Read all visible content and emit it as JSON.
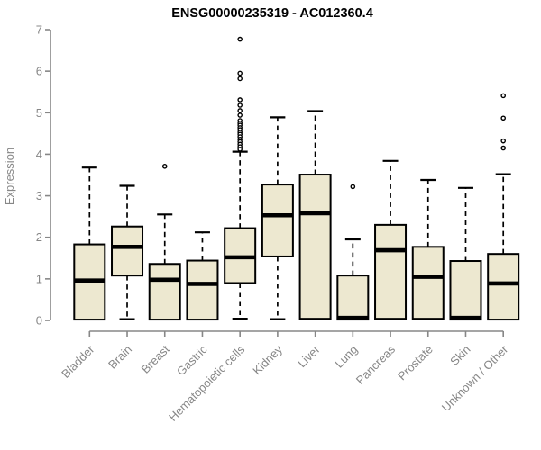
{
  "chart_data": {
    "type": "boxplot",
    "title": "ENSG00000235319 - AC012360.4",
    "xlabel": "",
    "ylabel": "Expression",
    "ylim": [
      0,
      7
    ],
    "yticks": [
      "0",
      "1",
      "2",
      "3",
      "4",
      "5",
      "6",
      "7"
    ],
    "grid": false,
    "legend": "none",
    "categories": [
      "Bladder",
      "Brain",
      "Breast",
      "Gastric",
      "Hematopoietic cells",
      "Kidney",
      "Liver",
      "Lung",
      "Pancreas",
      "Prostate",
      "Skin",
      "Unknown / Other"
    ],
    "series": [
      {
        "name": "Bladder",
        "whisker_low": null,
        "q1": 0.02,
        "median": 0.96,
        "q3": 1.83,
        "whisker_high": 3.68,
        "outliers": []
      },
      {
        "name": "Brain",
        "whisker_low": 0.03,
        "q1": 1.08,
        "median": 1.77,
        "q3": 2.26,
        "whisker_high": 3.24,
        "outliers": []
      },
      {
        "name": "Breast",
        "whisker_low": null,
        "q1": 0.02,
        "median": 0.98,
        "q3": 1.36,
        "whisker_high": 2.55,
        "outliers": [
          3.71
        ]
      },
      {
        "name": "Gastric",
        "whisker_low": null,
        "q1": 0.02,
        "median": 0.88,
        "q3": 1.44,
        "whisker_high": 2.12,
        "outliers": []
      },
      {
        "name": "Hematopoietic cells",
        "whisker_low": 0.04,
        "q1": 0.9,
        "median": 1.52,
        "q3": 2.22,
        "whisker_high": 4.06,
        "outliers": [
          6.77,
          5.95,
          5.82,
          5.31,
          5.18,
          5.05,
          4.94,
          4.81,
          4.75,
          4.7,
          4.64,
          4.59,
          4.53,
          4.48,
          4.42,
          4.36,
          4.3,
          4.24,
          4.18,
          4.12
        ]
      },
      {
        "name": "Kidney",
        "whisker_low": 0.03,
        "q1": 1.54,
        "median": 2.53,
        "q3": 3.27,
        "whisker_high": 4.89,
        "outliers": []
      },
      {
        "name": "Liver",
        "whisker_low": null,
        "q1": 0.04,
        "median": 2.58,
        "q3": 3.51,
        "whisker_high": 5.04,
        "outliers": []
      },
      {
        "name": "Lung",
        "whisker_low": null,
        "q1": 0.02,
        "median": 0.06,
        "q3": 1.08,
        "whisker_high": 1.95,
        "outliers": [
          3.22
        ]
      },
      {
        "name": "Pancreas",
        "whisker_low": null,
        "q1": 0.04,
        "median": 1.69,
        "q3": 2.3,
        "whisker_high": 3.84,
        "outliers": []
      },
      {
        "name": "Prostate",
        "whisker_low": null,
        "q1": 0.04,
        "median": 1.05,
        "q3": 1.77,
        "whisker_high": 3.38,
        "outliers": []
      },
      {
        "name": "Skin",
        "whisker_low": null,
        "q1": 0.02,
        "median": 0.06,
        "q3": 1.43,
        "whisker_high": 3.19,
        "outliers": []
      },
      {
        "name": "Unknown / Other",
        "whisker_low": null,
        "q1": 0.02,
        "median": 0.89,
        "q3": 1.6,
        "whisker_high": 3.52,
        "outliers": [
          5.41,
          4.87,
          4.32,
          4.15
        ]
      }
    ],
    "colors": {
      "box_fill": "#EDE8D0",
      "box_border": "#000000",
      "median": "#000000",
      "whisker": "#000000",
      "outlier_stroke": "#000000",
      "axis": "#878787",
      "tick_label": "#878787",
      "title": "#000000",
      "background": "#ffffff"
    }
  }
}
